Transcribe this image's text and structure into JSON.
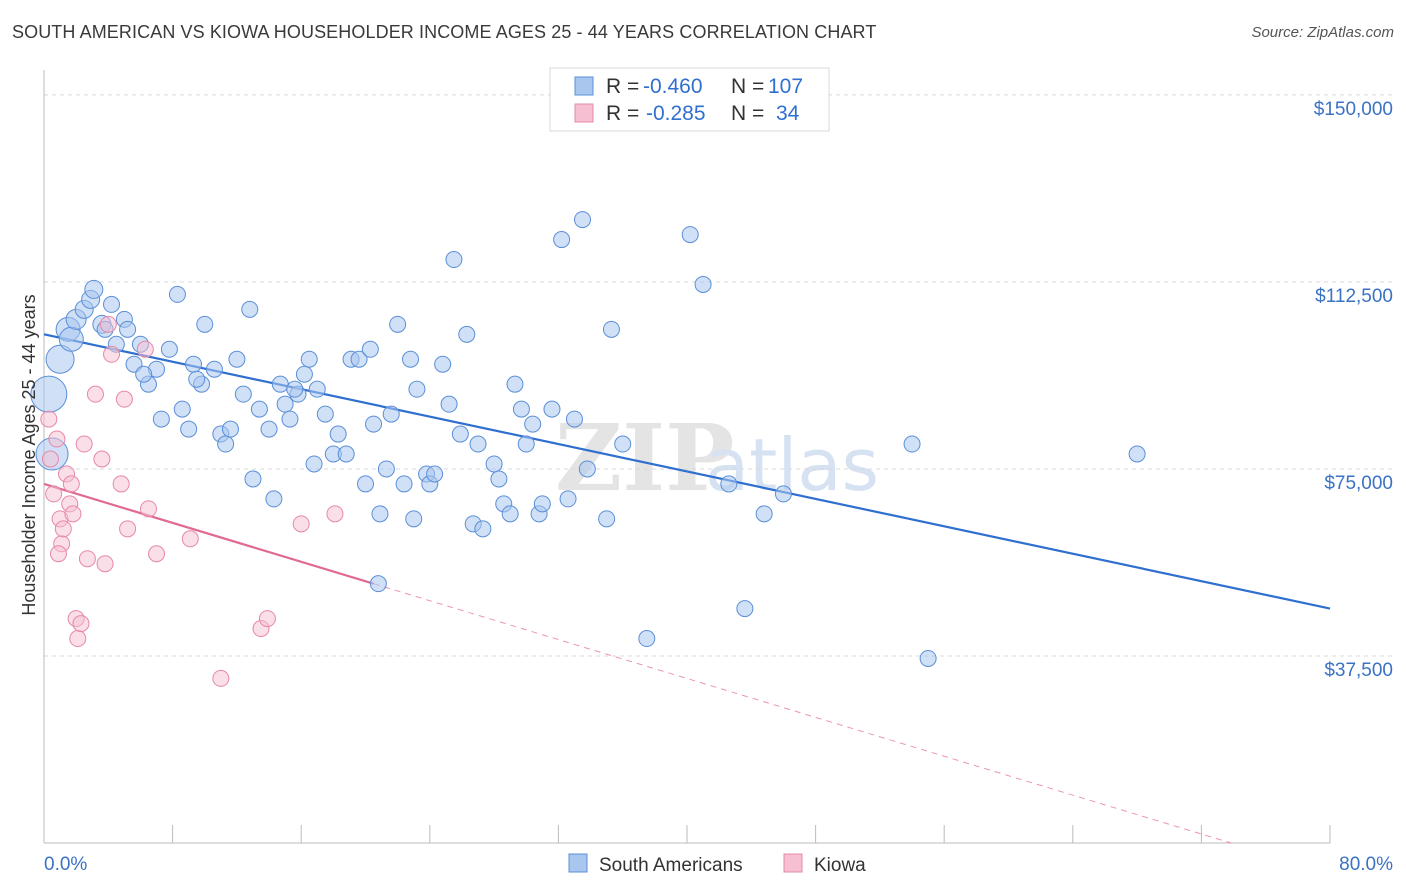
{
  "title": "SOUTH AMERICAN VS KIOWA HOUSEHOLDER INCOME AGES 25 - 44 YEARS CORRELATION CHART",
  "source": "Source: ZipAtlas.com",
  "watermark": {
    "zip": "ZIP",
    "atlas": "atlas"
  },
  "colors": {
    "blue_fill": "#a9c6ee",
    "blue_stroke": "#5b8fd8",
    "blue_line": "#2f6fd0",
    "pink_fill": "#f6c0d2",
    "pink_stroke": "#e688a8",
    "pink_line": "#e06a93",
    "grid": "#d8d8d8",
    "axis_text": "#3a72c4"
  },
  "legend": {
    "rows": [
      {
        "r_label": "R = ",
        "r_value": "-0.460",
        "n_label": "N = ",
        "n_value": "107"
      },
      {
        "r_label": "R = ",
        "r_value": "-0.285",
        "n_label": "N = ",
        "n_value": "34"
      }
    ]
  },
  "chart_data": {
    "type": "scatter",
    "xlabel": "",
    "ylabel": "Householder Income Ages 25 - 44 years",
    "xlim": [
      0,
      80
    ],
    "ylim": [
      0,
      155000
    ],
    "x_tick_labels": [
      "0.0%",
      "80.0%"
    ],
    "y_ticks": [
      37500,
      75000,
      112500,
      150000
    ],
    "y_tick_labels": [
      "$37,500",
      "$75,000",
      "$112,500",
      "$150,000"
    ],
    "grid": true,
    "series": [
      {
        "name": "South Americans",
        "r": -0.46,
        "n": 107,
        "trend": {
          "x": [
            0,
            80
          ],
          "y": [
            102000,
            47000
          ]
        },
        "points": [
          [
            0.3,
            90000,
            18
          ],
          [
            0.5,
            78000,
            16
          ],
          [
            1.0,
            97000,
            14
          ],
          [
            1.5,
            103000,
            12
          ],
          [
            1.7,
            101000,
            12
          ],
          [
            2.0,
            105000,
            10
          ],
          [
            2.5,
            107000,
            9
          ],
          [
            2.9,
            109000,
            9
          ],
          [
            3.1,
            111000,
            9
          ],
          [
            3.6,
            104000,
            9
          ],
          [
            3.8,
            103000,
            8
          ],
          [
            4.2,
            108000,
            8
          ],
          [
            4.5,
            100000,
            8
          ],
          [
            5.0,
            105000,
            8
          ],
          [
            5.2,
            103000,
            8
          ],
          [
            5.6,
            96000,
            8
          ],
          [
            6.0,
            100000,
            8
          ],
          [
            6.5,
            92000,
            8
          ],
          [
            7.0,
            95000,
            8
          ],
          [
            7.3,
            85000,
            8
          ],
          [
            7.8,
            99000,
            8
          ],
          [
            8.3,
            110000,
            8
          ],
          [
            8.6,
            87000,
            8
          ],
          [
            9.0,
            83000,
            8
          ],
          [
            9.3,
            96000,
            8
          ],
          [
            9.8,
            92000,
            8
          ],
          [
            10.0,
            104000,
            8
          ],
          [
            10.6,
            95000,
            8
          ],
          [
            11.0,
            82000,
            8
          ],
          [
            11.3,
            80000,
            8
          ],
          [
            11.6,
            83000,
            8
          ],
          [
            12.0,
            97000,
            8
          ],
          [
            12.4,
            90000,
            8
          ],
          [
            12.8,
            107000,
            8
          ],
          [
            13.0,
            73000,
            8
          ],
          [
            13.4,
            87000,
            8
          ],
          [
            14.0,
            83000,
            8
          ],
          [
            14.3,
            69000,
            8
          ],
          [
            14.7,
            92000,
            8
          ],
          [
            15.0,
            88000,
            8
          ],
          [
            15.3,
            85000,
            8
          ],
          [
            15.8,
            90000,
            8
          ],
          [
            16.2,
            94000,
            8
          ],
          [
            16.5,
            97000,
            8
          ],
          [
            16.8,
            76000,
            8
          ],
          [
            17.0,
            91000,
            8
          ],
          [
            17.5,
            86000,
            8
          ],
          [
            18.0,
            78000,
            8
          ],
          [
            18.3,
            82000,
            8
          ],
          [
            18.8,
            78000,
            8
          ],
          [
            19.1,
            97000,
            8
          ],
          [
            19.6,
            97000,
            8
          ],
          [
            20.0,
            72000,
            8
          ],
          [
            20.3,
            99000,
            8
          ],
          [
            20.5,
            84000,
            8
          ],
          [
            20.9,
            66000,
            8
          ],
          [
            21.3,
            75000,
            8
          ],
          [
            21.6,
            86000,
            8
          ],
          [
            22.0,
            104000,
            8
          ],
          [
            22.4,
            72000,
            8
          ],
          [
            22.8,
            97000,
            8
          ],
          [
            23.2,
            91000,
            8
          ],
          [
            23.8,
            74000,
            8
          ],
          [
            24.0,
            72000,
            8
          ],
          [
            24.3,
            74000,
            8
          ],
          [
            24.8,
            96000,
            8
          ],
          [
            25.2,
            88000,
            8
          ],
          [
            25.5,
            117000,
            8
          ],
          [
            25.9,
            82000,
            8
          ],
          [
            26.3,
            102000,
            8
          ],
          [
            26.7,
            64000,
            8
          ],
          [
            27.0,
            80000,
            8
          ],
          [
            27.3,
            63000,
            8
          ],
          [
            28.0,
            76000,
            8
          ],
          [
            28.3,
            73000,
            8
          ],
          [
            28.6,
            68000,
            8
          ],
          [
            29.0,
            66000,
            8
          ],
          [
            29.3,
            92000,
            8
          ],
          [
            29.7,
            87000,
            8
          ],
          [
            30.0,
            80000,
            8
          ],
          [
            30.4,
            84000,
            8
          ],
          [
            30.8,
            66000,
            8
          ],
          [
            31.0,
            68000,
            8
          ],
          [
            31.6,
            87000,
            8
          ],
          [
            32.2,
            121000,
            8
          ],
          [
            32.6,
            69000,
            8
          ],
          [
            33.0,
            85000,
            8
          ],
          [
            33.5,
            125000,
            8
          ],
          [
            33.8,
            75000,
            8
          ],
          [
            35.0,
            65000,
            8
          ],
          [
            35.3,
            103000,
            8
          ],
          [
            36.0,
            80000,
            8
          ],
          [
            37.5,
            41000,
            8
          ],
          [
            40.2,
            122000,
            8
          ],
          [
            41.0,
            112000,
            8
          ],
          [
            42.6,
            72000,
            8
          ],
          [
            43.6,
            47000,
            8
          ],
          [
            44.8,
            66000,
            8
          ],
          [
            46.0,
            70000,
            8
          ],
          [
            54.0,
            80000,
            8
          ],
          [
            55.0,
            37000,
            8
          ],
          [
            68.0,
            78000,
            8
          ],
          [
            20.8,
            52000,
            8
          ],
          [
            6.2,
            94000,
            8
          ],
          [
            9.5,
            93000,
            8
          ],
          [
            15.6,
            91000,
            8
          ],
          [
            23.0,
            65000,
            8
          ]
        ]
      },
      {
        "name": "Kiowa",
        "r": -0.285,
        "n": 34,
        "trend": {
          "x": [
            0,
            20.5
          ],
          "y": [
            72000,
            52000
          ]
        },
        "trend_dashed": {
          "x": [
            20.5,
            80
          ],
          "y": [
            52000,
            -6000
          ]
        },
        "points": [
          [
            0.3,
            85000
          ],
          [
            0.4,
            77000
          ],
          [
            0.6,
            70000
          ],
          [
            0.8,
            81000
          ],
          [
            1.0,
            65000
          ],
          [
            1.1,
            60000
          ],
          [
            1.2,
            63000
          ],
          [
            1.4,
            74000
          ],
          [
            1.6,
            68000
          ],
          [
            1.7,
            72000
          ],
          [
            1.8,
            66000
          ],
          [
            2.0,
            45000
          ],
          [
            2.1,
            41000
          ],
          [
            2.3,
            44000
          ],
          [
            2.5,
            80000
          ],
          [
            2.7,
            57000
          ],
          [
            3.2,
            90000
          ],
          [
            3.6,
            77000
          ],
          [
            3.8,
            56000
          ],
          [
            4.2,
            98000
          ],
          [
            4.8,
            72000
          ],
          [
            5.0,
            89000
          ],
          [
            5.2,
            63000
          ],
          [
            6.3,
            99000
          ],
          [
            6.5,
            67000
          ],
          [
            7.0,
            58000
          ],
          [
            9.1,
            61000
          ],
          [
            11.0,
            33000
          ],
          [
            13.5,
            43000
          ],
          [
            13.9,
            45000
          ],
          [
            16.0,
            64000
          ],
          [
            18.1,
            66000
          ],
          [
            4.0,
            104000
          ],
          [
            0.9,
            58000
          ]
        ]
      }
    ]
  }
}
